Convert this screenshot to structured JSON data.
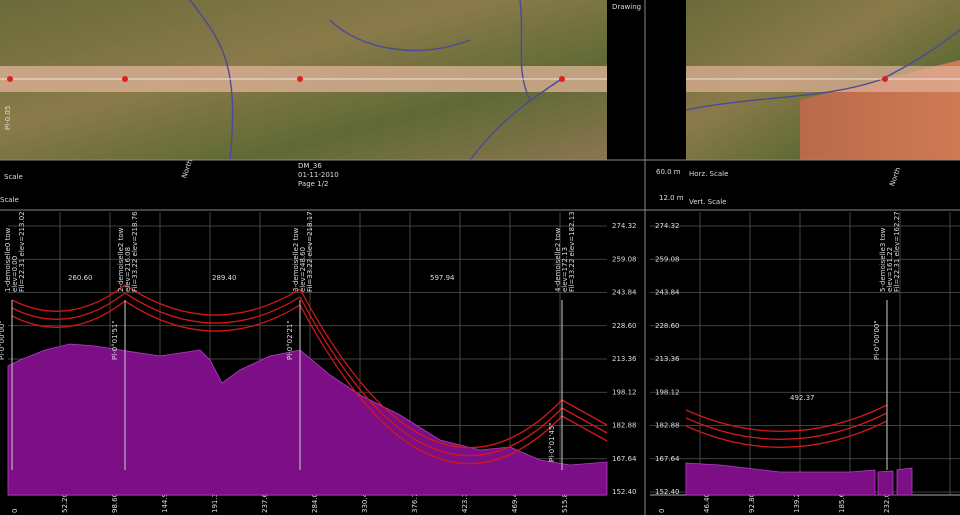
{
  "header": {
    "drawing": "Drawing",
    "scale_1": "Scale",
    "scale_2": "Scale",
    "north_left": "North",
    "drawing_id": "DM_36",
    "date": "01-11-2010",
    "page": "Page 1/2",
    "horz_scale_value": "60.0 m",
    "horz_scale_label": "Horz. Scale",
    "vert_scale_value": "12.0 m",
    "vert_scale_label": "Vert. Scale",
    "north_right": "North"
  },
  "imagery": {
    "label": "Pl-0.05"
  },
  "profile_left": {
    "elevations": [
      "274.32",
      "259.08",
      "243.84",
      "228.60",
      "213.36",
      "198.12",
      "182.88",
      "167.64",
      "152.40"
    ],
    "spans": [
      "260.60",
      "289.40",
      "597.94"
    ],
    "stations": [
      "0",
      "52.20",
      "98.60",
      "144.90",
      "191.30",
      "237.60",
      "284.00",
      "330.40",
      "376.70",
      "423.10",
      "469.40",
      "515.80"
    ]
  },
  "profile_right": {
    "elevations": [
      "274.32",
      "259.08",
      "243.84",
      "228.60",
      "213.36",
      "198.12",
      "182.88",
      "167.64",
      "152.40"
    ],
    "spans": [
      "492.37"
    ],
    "stations": [
      "0",
      "46.40",
      "92.80",
      "139.20",
      "185.60",
      "232.00"
    ]
  },
  "towers": [
    {
      "lines": [
        "1-demoiselle0 tow",
        "elev=0.00",
        "Fil=22.31 elev=213.02"
      ],
      "angle": "Pl-0°00'00\""
    },
    {
      "lines": [
        "2-demoiselle2 tow",
        "elev=216.08",
        "Fil=33.22 elev=218.76"
      ],
      "angle": "Pl-0°01'51\""
    },
    {
      "lines": [
        "3-demoiselle2 tow",
        "elev=248.60",
        "Fil=33.22 elev=218.17"
      ],
      "angle": "Pl-0°02'21\""
    },
    {
      "lines": [
        "4-demoiselle2 tow",
        "elev=172.13",
        "Fil=33.22 elev=182.13"
      ],
      "angle": "Pl-0°01'45\""
    },
    {
      "lines": [
        "5-demoiselle3 tow",
        "elev=161.22",
        "Fil=22.31 elev=162.27"
      ],
      "angle": "Pl-0°00'00\""
    }
  ]
}
